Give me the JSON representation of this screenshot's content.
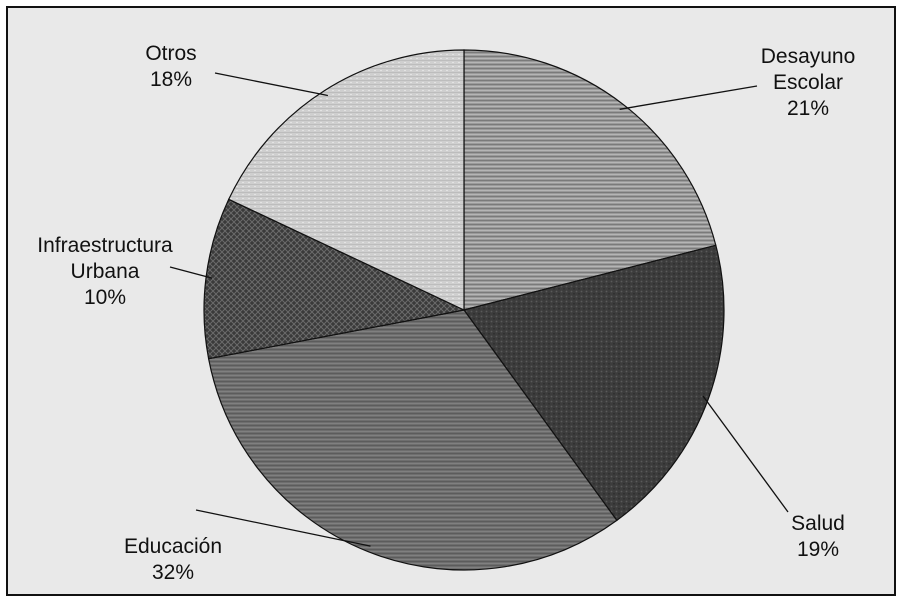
{
  "chart_data": {
    "type": "pie",
    "title": "",
    "slices": [
      {
        "label": [
          "Desayuno",
          "Escolar"
        ],
        "pct": "21%",
        "value": 21
      },
      {
        "label": [
          "Salud"
        ],
        "pct": "19%",
        "value": 19
      },
      {
        "label": [
          "Educación"
        ],
        "pct": "32%",
        "value": 32
      },
      {
        "label": [
          "Infraestructura",
          "Urbana"
        ],
        "pct": "10%",
        "value": 10
      },
      {
        "label": [
          "Otros"
        ],
        "pct": "18%",
        "value": 18
      }
    ],
    "legend": "none",
    "start_angle": "12 o'clock",
    "direction": "clockwise"
  }
}
